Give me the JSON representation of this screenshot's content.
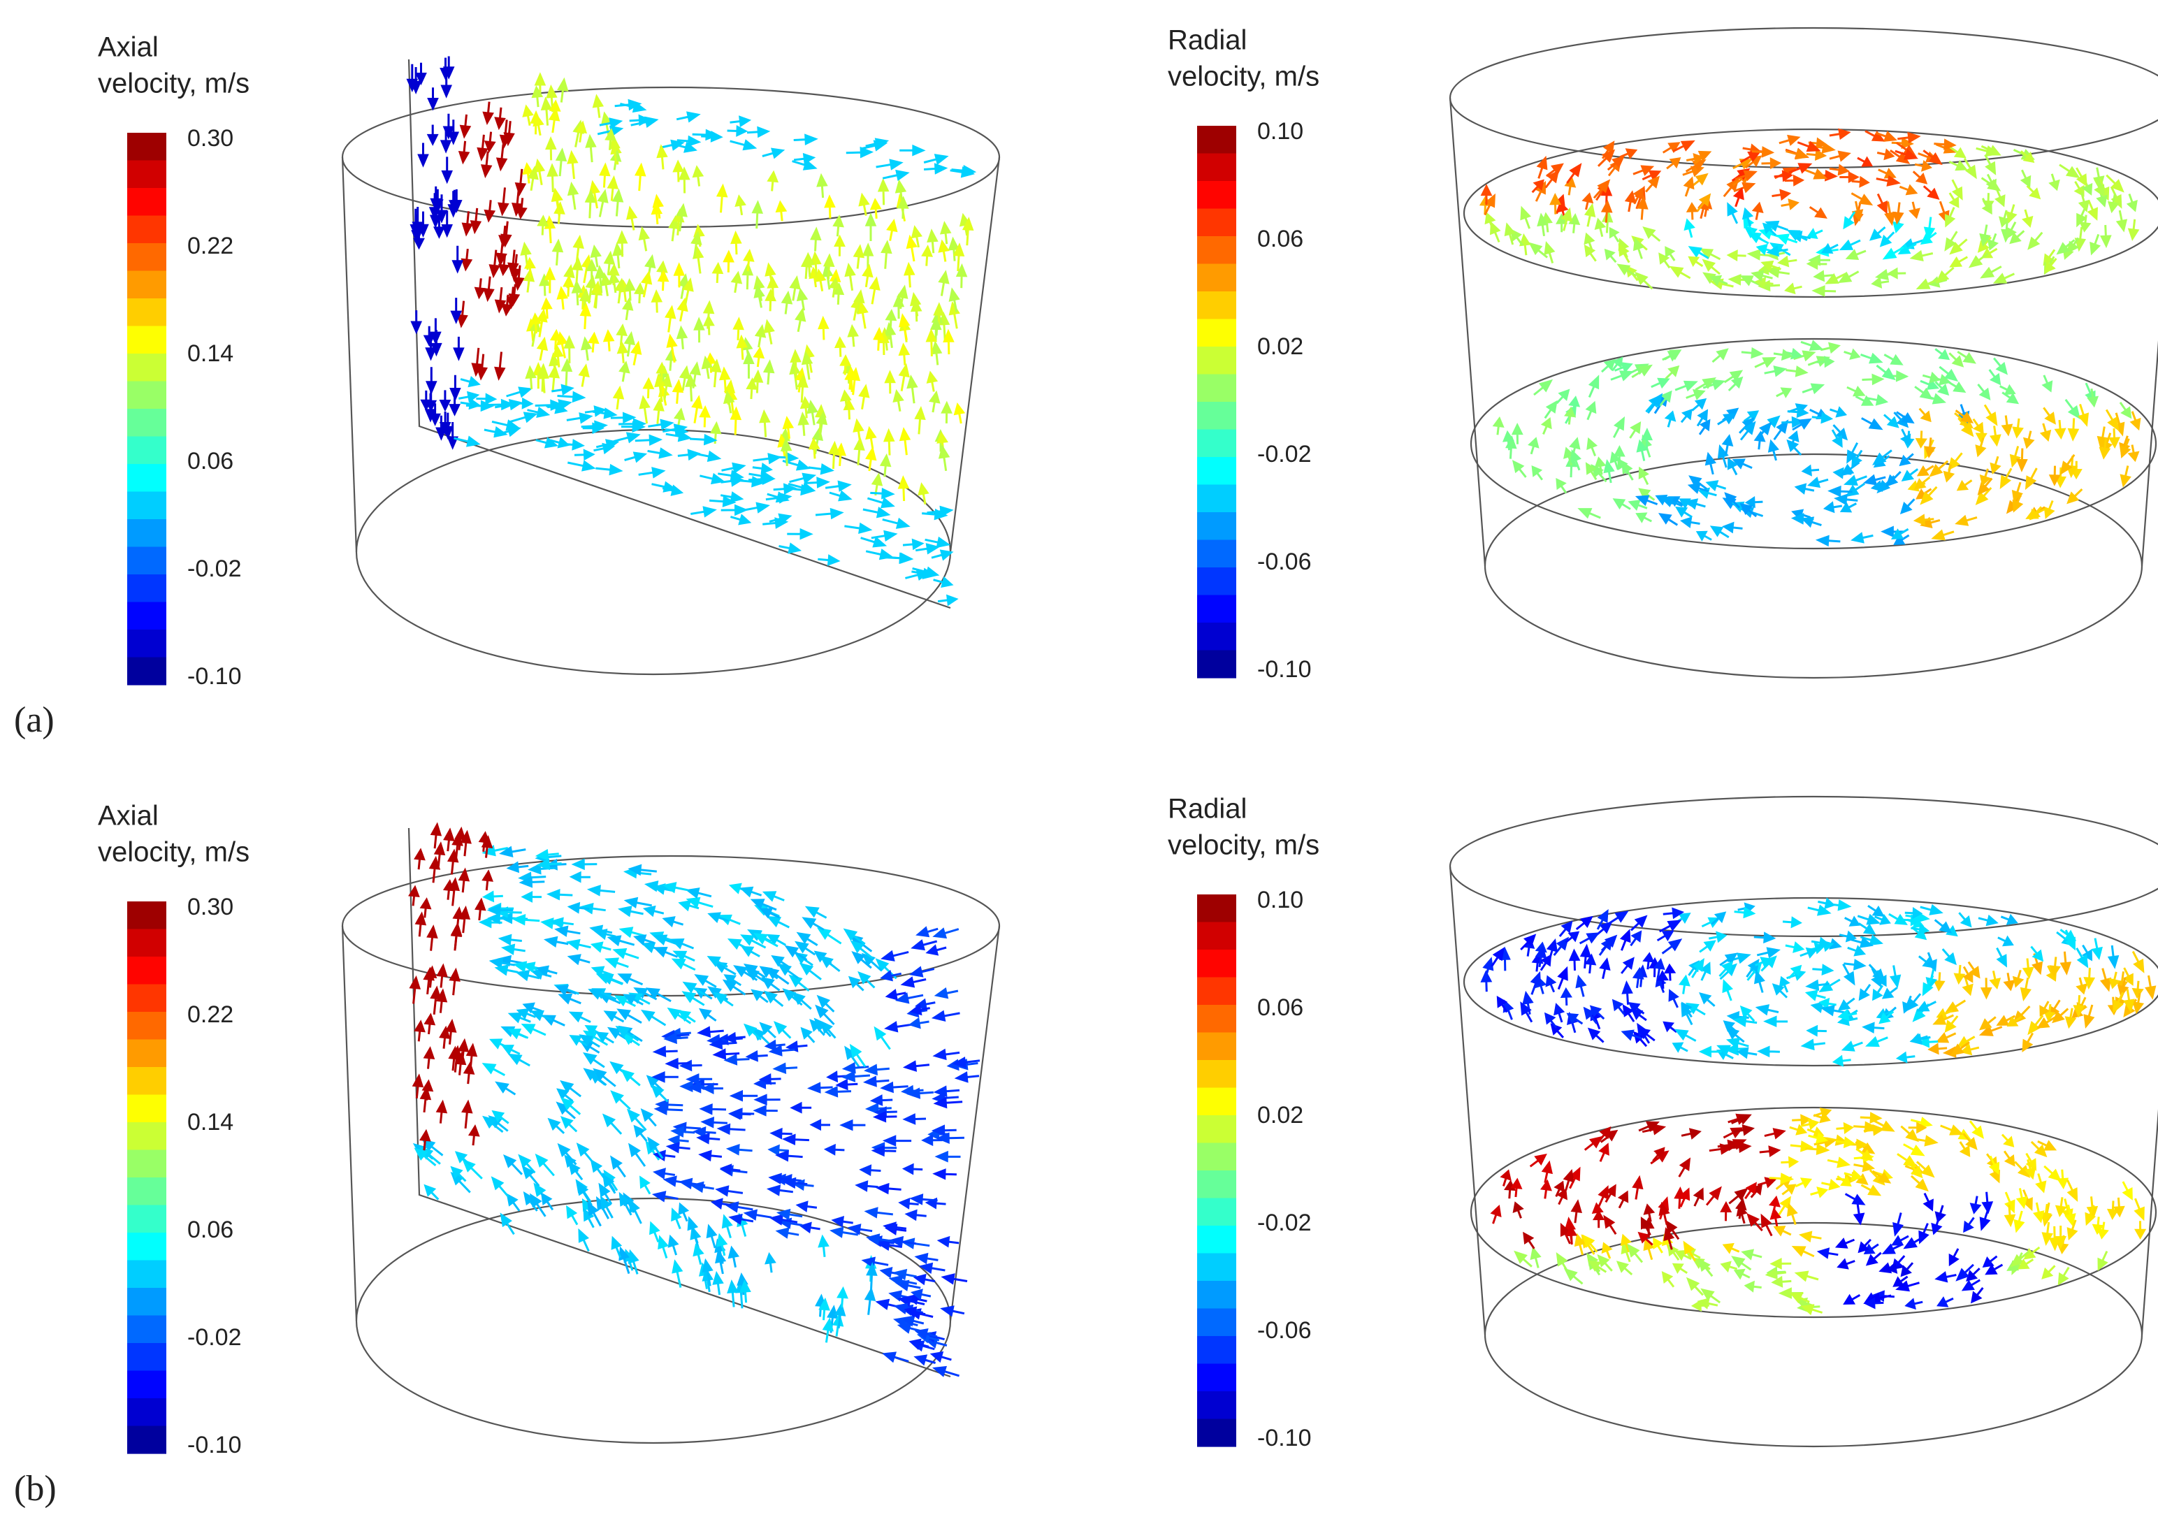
{
  "panels": [
    {
      "label": "(a)",
      "legends": [
        {
          "title_lines": [
            "Axial",
            "velocity, m/s"
          ],
          "ticks": [
            "0.30",
            "0.22",
            "0.14",
            "0.06",
            "-0.02",
            "-0.10"
          ]
        },
        {
          "title_lines": [
            "Radial",
            "velocity, m/s"
          ],
          "ticks": [
            "0.10",
            "0.06",
            "0.02",
            "-0.02",
            "-0.06",
            "-0.10"
          ]
        }
      ]
    },
    {
      "label": "(b)",
      "legends": [
        {
          "title_lines": [
            "Axial",
            "velocity, m/s"
          ],
          "ticks": [
            "0.30",
            "0.22",
            "0.14",
            "0.06",
            "-0.02",
            "-0.10"
          ]
        },
        {
          "title_lines": [
            "Radial",
            "velocity, m/s"
          ],
          "ticks": [
            "0.10",
            "0.06",
            "0.02",
            "-0.02",
            "-0.06",
            "-0.10"
          ]
        }
      ]
    }
  ]
}
